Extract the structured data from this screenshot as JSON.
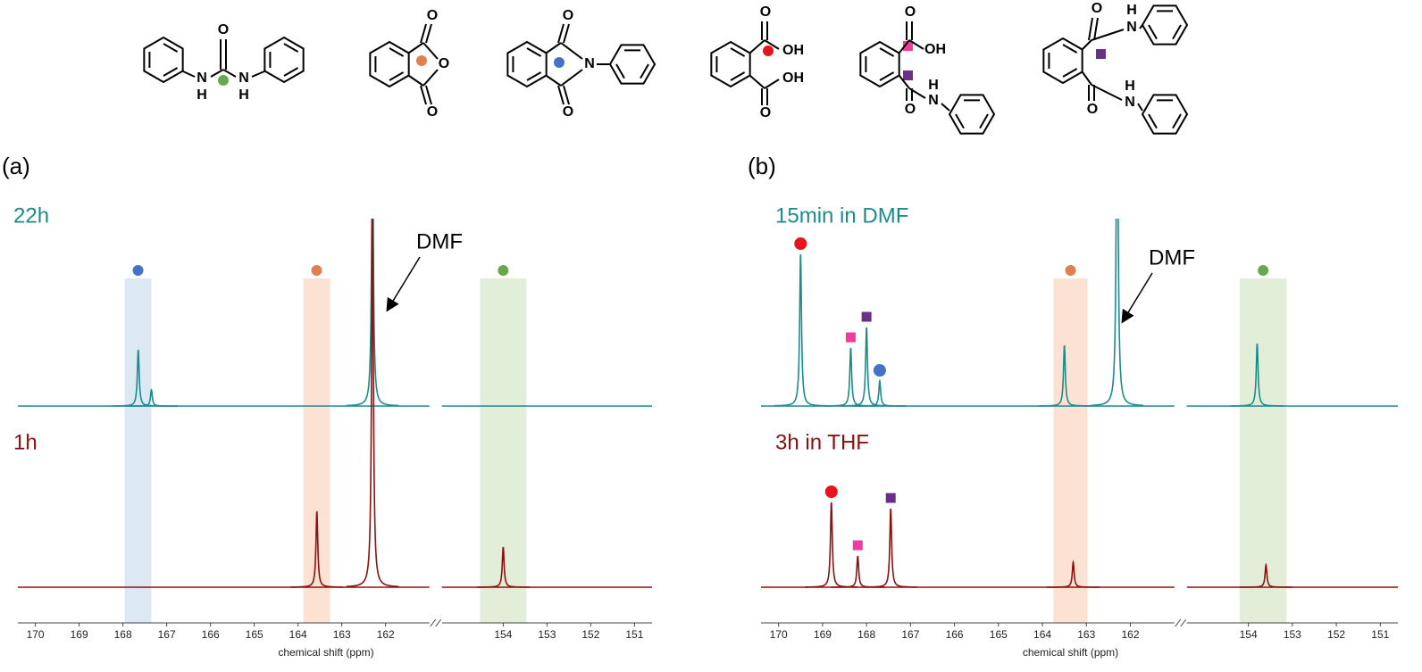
{
  "structures": [
    {
      "labels": [
        "N",
        "H",
        "O",
        "N",
        "H"
      ]
    },
    {
      "labels": [
        "O",
        "O",
        "O"
      ]
    },
    {
      "labels": [
        "O",
        "N",
        "O"
      ]
    },
    {
      "labels": [
        "O",
        "OH",
        "O",
        "OH"
      ]
    },
    {
      "labels": [
        "O",
        "OH",
        "O",
        "H",
        "N"
      ]
    },
    {
      "labels": [
        "O",
        "H",
        "N",
        "O",
        "H",
        "N"
      ]
    }
  ],
  "chart_data": [
    {
      "type": "nmr",
      "panel_label": "(a)",
      "x_label": "chemical shift (ppm)",
      "xlim": [
        170.4,
        150.6
      ],
      "x_break": [
        161.0,
        155.4
      ],
      "xticks": [
        170,
        169,
        168,
        167,
        166,
        165,
        164,
        163,
        162,
        154,
        153,
        152,
        151
      ],
      "bands": [
        {
          "range": [
            167.96,
            167.35
          ],
          "color": "#dce9f5",
          "marker_color": "#4472c4"
        },
        {
          "range": [
            163.88,
            163.27
          ],
          "color": "#fbe2d2",
          "marker_color": "#e0804d"
        },
        {
          "range": [
            154.53,
            153.47
          ],
          "color": "#e2eed8",
          "marker_color": "#6aa84f"
        }
      ],
      "annotation": "DMF",
      "series": [
        {
          "name": "22h",
          "color": "#1a8c8c",
          "x": [
            167.65,
            167.35,
            162.3
          ],
          "values": [
            63,
            18,
            300
          ],
          "markers": [
            null,
            null,
            null
          ]
        },
        {
          "name": "1h",
          "color": "#8b1010",
          "x": [
            163.57,
            162.3,
            154.0
          ],
          "values": [
            85,
            420,
            45
          ],
          "markers": [
            null,
            null,
            null
          ]
        }
      ]
    },
    {
      "type": "nmr",
      "panel_label": "(b)",
      "x_label": "chemical shift (ppm)",
      "xlim": [
        170.4,
        150.6
      ],
      "x_break": [
        161.0,
        155.4
      ],
      "xticks": [
        170,
        169,
        168,
        167,
        166,
        165,
        164,
        163,
        162,
        154,
        153,
        152,
        151
      ],
      "bands": [
        {
          "range": [
            163.75,
            162.97
          ],
          "color": "#fbe2d2",
          "marker_color": "#e0804d"
        },
        {
          "range": [
            154.2,
            153.13
          ],
          "color": "#e2eed8",
          "marker_color": "#6aa84f"
        }
      ],
      "annotation": "DMF",
      "series": [
        {
          "name": "15min in DMF",
          "color": "#1a8c8c",
          "x": [
            169.5,
            168.36,
            168.0,
            167.7,
            163.5,
            162.3,
            153.8
          ],
          "values": [
            170,
            65,
            88,
            28,
            68,
            400,
            70
          ],
          "markers": [
            {
              "shape": "circle",
              "color": "#e8141b"
            },
            {
              "shape": "square",
              "color": "#f03ca0"
            },
            {
              "shape": "square",
              "color": "#6b2f8a"
            },
            {
              "shape": "circle",
              "color": "#4472c4"
            },
            null,
            null,
            null
          ]
        },
        {
          "name": "3h in THF",
          "color": "#8b1010",
          "x": [
            168.8,
            168.2,
            167.45,
            163.3,
            153.6
          ],
          "values": [
            95,
            35,
            88,
            28,
            25
          ],
          "markers": [
            {
              "shape": "circle",
              "color": "#e8141b"
            },
            {
              "shape": "square",
              "color": "#f03ca0"
            },
            {
              "shape": "square",
              "color": "#6b2f8a"
            },
            null,
            null
          ]
        }
      ]
    }
  ]
}
